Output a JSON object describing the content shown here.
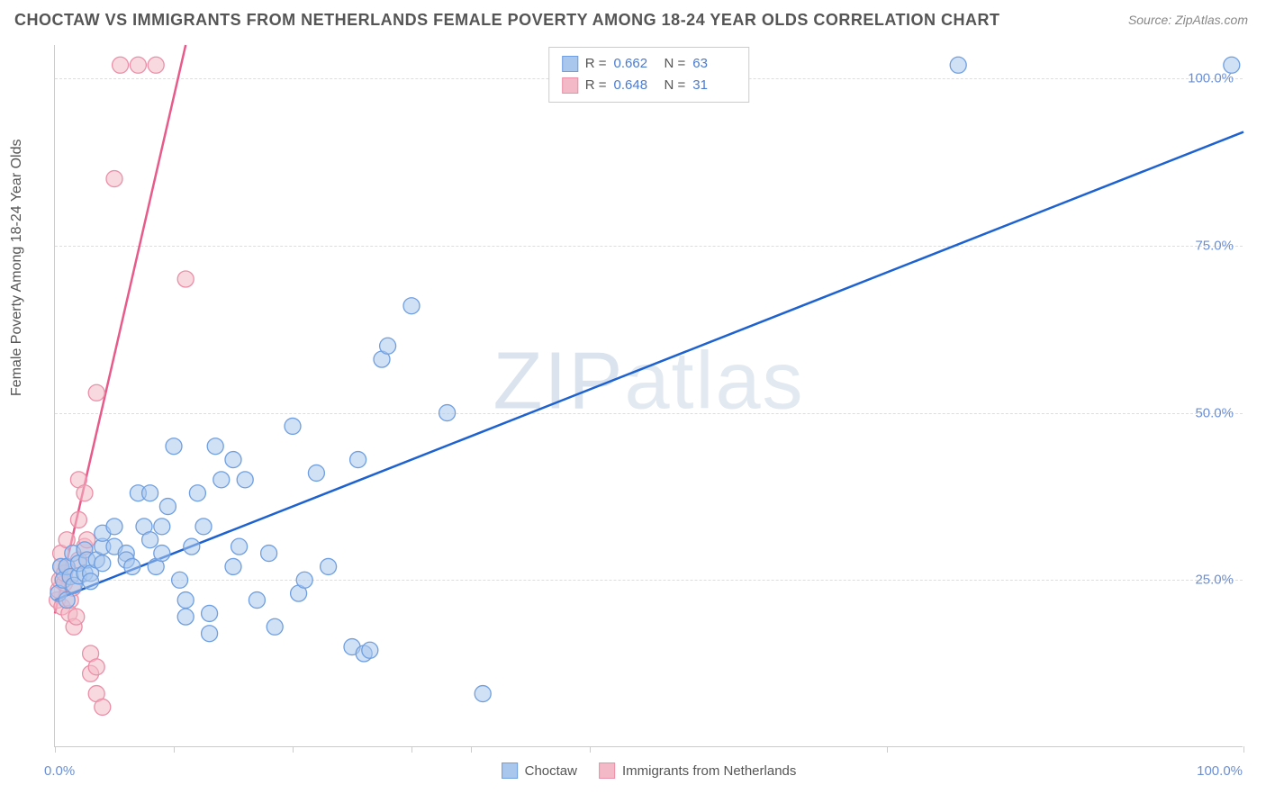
{
  "title": "CHOCTAW VS IMMIGRANTS FROM NETHERLANDS FEMALE POVERTY AMONG 18-24 YEAR OLDS CORRELATION CHART",
  "source": "Source: ZipAtlas.com",
  "ylabel": "Female Poverty Among 18-24 Year Olds",
  "watermark_a": "ZIP",
  "watermark_b": "atlas",
  "chart": {
    "type": "scatter",
    "xlim": [
      0,
      100
    ],
    "ylim": [
      0,
      105
    ],
    "ytick_values": [
      25,
      50,
      75,
      100
    ],
    "ytick_labels": [
      "25.0%",
      "50.0%",
      "75.0%",
      "100.0%"
    ],
    "xtick_values": [
      0,
      10,
      20,
      30,
      35,
      45,
      70,
      100
    ],
    "xaxis_min_label": "0.0%",
    "xaxis_max_label": "100.0%",
    "background_color": "#ffffff",
    "grid_color": "#dddddd",
    "axis_color": "#cccccc"
  },
  "series": {
    "choctaw": {
      "label": "Choctaw",
      "marker_fill": "#a9c6ec",
      "marker_stroke": "#6f9fe0",
      "marker_opacity": 0.55,
      "marker_radius": 9,
      "line_color": "#1e62d0",
      "line_width": 2.5,
      "regression": {
        "x1": 0,
        "y1": 22,
        "x2": 100,
        "y2": 92
      },
      "R": "0.662",
      "N": "63",
      "points": [
        [
          0.3,
          23
        ],
        [
          0.5,
          27
        ],
        [
          0.7,
          25
        ],
        [
          1,
          22
        ],
        [
          1,
          27
        ],
        [
          1.3,
          25.5
        ],
        [
          1.5,
          29
        ],
        [
          1.6,
          24.2
        ],
        [
          2,
          25.6
        ],
        [
          2,
          27.5
        ],
        [
          2.5,
          26
        ],
        [
          2.5,
          29.5
        ],
        [
          2.7,
          28
        ],
        [
          3,
          26
        ],
        [
          3,
          24.8
        ],
        [
          3.5,
          28
        ],
        [
          4,
          27.5
        ],
        [
          4,
          30
        ],
        [
          4,
          32
        ],
        [
          5,
          30
        ],
        [
          5,
          33
        ],
        [
          6,
          29
        ],
        [
          6,
          28
        ],
        [
          6.5,
          27
        ],
        [
          7,
          38
        ],
        [
          7.5,
          33
        ],
        [
          8,
          31
        ],
        [
          8,
          38
        ],
        [
          8.5,
          27
        ],
        [
          9,
          29
        ],
        [
          9,
          33
        ],
        [
          9.5,
          36
        ],
        [
          10,
          45
        ],
        [
          10.5,
          25
        ],
        [
          11,
          22
        ],
        [
          11,
          19.5
        ],
        [
          11.5,
          30
        ],
        [
          12,
          38
        ],
        [
          12.5,
          33
        ],
        [
          13,
          17
        ],
        [
          13,
          20
        ],
        [
          13.5,
          45
        ],
        [
          14,
          40
        ],
        [
          15,
          43
        ],
        [
          15,
          27
        ],
        [
          15.5,
          30
        ],
        [
          16,
          40
        ],
        [
          17,
          22
        ],
        [
          18,
          29
        ],
        [
          18.5,
          18
        ],
        [
          20,
          48
        ],
        [
          20.5,
          23
        ],
        [
          21,
          25
        ],
        [
          22,
          41
        ],
        [
          23,
          27
        ],
        [
          25,
          15
        ],
        [
          25.5,
          43
        ],
        [
          26,
          14
        ],
        [
          26.5,
          14.5
        ],
        [
          27.5,
          58
        ],
        [
          28,
          60
        ],
        [
          30,
          66
        ],
        [
          33,
          50
        ],
        [
          36,
          8
        ],
        [
          76,
          102
        ],
        [
          99,
          102
        ]
      ]
    },
    "netherlands": {
      "label": "Immigrants from Netherlands",
      "marker_fill": "#f4b9c7",
      "marker_stroke": "#ea8fa7",
      "marker_opacity": 0.55,
      "marker_radius": 9,
      "line_color": "#e85a8a",
      "line_width": 2.5,
      "regression": {
        "x1": 0,
        "y1": 20,
        "x2": 11,
        "y2": 105
      },
      "R": "0.648",
      "N": "31",
      "points": [
        [
          0.2,
          22
        ],
        [
          0.3,
          23.5
        ],
        [
          0.4,
          25
        ],
        [
          0.5,
          27
        ],
        [
          0.5,
          29
        ],
        [
          0.6,
          21
        ],
        [
          0.8,
          24.5
        ],
        [
          0.8,
          26
        ],
        [
          1,
          27
        ],
        [
          1,
          31
        ],
        [
          1.2,
          20
        ],
        [
          1.3,
          22
        ],
        [
          1.5,
          23.8
        ],
        [
          1.6,
          18
        ],
        [
          1.8,
          19.5
        ],
        [
          2,
          28
        ],
        [
          2,
          34
        ],
        [
          2,
          40
        ],
        [
          2.5,
          30
        ],
        [
          2.5,
          38
        ],
        [
          2.7,
          31
        ],
        [
          3,
          14
        ],
        [
          3,
          11
        ],
        [
          3.5,
          8
        ],
        [
          3.5,
          12
        ],
        [
          3.5,
          53
        ],
        [
          4,
          6
        ],
        [
          5,
          85
        ],
        [
          5.5,
          102
        ],
        [
          7,
          102
        ],
        [
          8.5,
          102
        ],
        [
          11,
          70
        ]
      ]
    }
  },
  "legend_top": [
    {
      "swatch_fill": "#a9c6ec",
      "swatch_stroke": "#6f9fe0",
      "R_label": "R =",
      "R": "0.662",
      "N_label": "N =",
      "N": "63"
    },
    {
      "swatch_fill": "#f4b9c7",
      "swatch_stroke": "#ea8fa7",
      "R_label": "R =",
      "R": "0.648",
      "N_label": "N =",
      "N": "31"
    }
  ],
  "legend_bottom": [
    {
      "swatch_fill": "#a9c6ec",
      "swatch_stroke": "#6f9fe0",
      "label": "Choctaw"
    },
    {
      "swatch_fill": "#f4b9c7",
      "swatch_stroke": "#ea8fa7",
      "label": "Immigrants from Netherlands"
    }
  ]
}
